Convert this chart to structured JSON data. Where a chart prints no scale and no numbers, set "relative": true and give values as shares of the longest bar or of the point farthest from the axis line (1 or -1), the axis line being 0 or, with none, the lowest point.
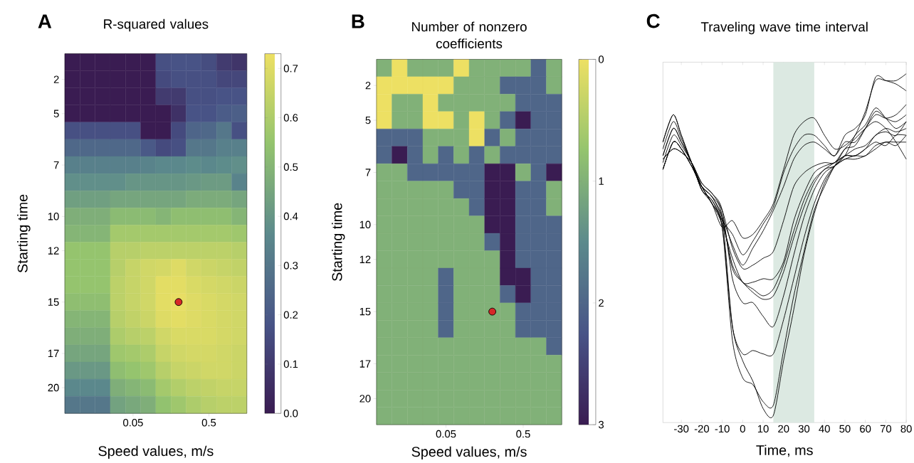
{
  "chart_data": [
    {
      "type": "heatmap",
      "title": "R-squared values",
      "xlabel": "Speed values, m/s",
      "ylabel": "Starting time",
      "annotations": [
        "A"
      ],
      "categories": [
        null,
        null,
        null,
        null,
        "0.05",
        null,
        null,
        null,
        null,
        "0.5",
        null,
        null
      ],
      "y_categories": [
        null,
        "2",
        null,
        "5",
        null,
        null,
        "7",
        null,
        null,
        "10",
        null,
        "12",
        null,
        null,
        "15",
        null,
        null,
        "17",
        null,
        "20",
        null
      ],
      "cells": [
        [
          0,
          0,
          0,
          0,
          0,
          0,
          0.17,
          0.18,
          0.18,
          0.16,
          0.1,
          0.08
        ],
        [
          0,
          0,
          0,
          0,
          0,
          0,
          0.15,
          0.17,
          0.17,
          0.17,
          0.14,
          0.14
        ],
        [
          0,
          0,
          0,
          0,
          0,
          0,
          0.1,
          0.1,
          0.17,
          0.17,
          0.18,
          0.18
        ],
        [
          0,
          0,
          0,
          0,
          0,
          0,
          0,
          0.07,
          0.18,
          0.18,
          0.21,
          0.22
        ],
        [
          0.17,
          0.17,
          0.17,
          0.17,
          0.17,
          0,
          0,
          0.15,
          0.24,
          0.25,
          0.3,
          0.17
        ],
        [
          0.25,
          0.25,
          0.25,
          0.25,
          0.25,
          0.2,
          0.15,
          0.17,
          0.3,
          0.3,
          0.33,
          0.33
        ],
        [
          0.33,
          0.33,
          0.33,
          0.33,
          0.33,
          0.34,
          0.36,
          0.36,
          0.37,
          0.36,
          0.37,
          0.38
        ],
        [
          0.38,
          0.38,
          0.38,
          0.38,
          0.4,
          0.4,
          0.4,
          0.4,
          0.41,
          0.42,
          0.42,
          0.34
        ],
        [
          0.43,
          0.43,
          0.43,
          0.45,
          0.45,
          0.45,
          0.45,
          0.45,
          0.47,
          0.47,
          0.47,
          0.45
        ],
        [
          0.48,
          0.48,
          0.48,
          0.52,
          0.52,
          0.52,
          0.5,
          0.53,
          0.53,
          0.53,
          0.53,
          0.5
        ],
        [
          0.5,
          0.5,
          0.5,
          0.58,
          0.58,
          0.58,
          0.58,
          0.58,
          0.58,
          0.58,
          0.58,
          0.57
        ],
        [
          0.55,
          0.55,
          0.55,
          0.62,
          0.62,
          0.63,
          0.63,
          0.63,
          0.63,
          0.63,
          0.63,
          0.62
        ],
        [
          0.55,
          0.55,
          0.55,
          0.62,
          0.65,
          0.67,
          0.68,
          0.7,
          0.67,
          0.66,
          0.65,
          0.64
        ],
        [
          0.55,
          0.55,
          0.55,
          0.63,
          0.65,
          0.67,
          0.71,
          0.71,
          0.69,
          0.68,
          0.67,
          0.66
        ],
        [
          0.53,
          0.53,
          0.53,
          0.63,
          0.65,
          0.67,
          0.71,
          0.72,
          0.7,
          0.69,
          0.68,
          0.67
        ],
        [
          0.5,
          0.5,
          0.5,
          0.62,
          0.64,
          0.66,
          0.7,
          0.71,
          0.7,
          0.69,
          0.68,
          0.67
        ],
        [
          0.48,
          0.48,
          0.48,
          0.6,
          0.62,
          0.63,
          0.67,
          0.69,
          0.69,
          0.69,
          0.68,
          0.67
        ],
        [
          0.45,
          0.45,
          0.45,
          0.57,
          0.58,
          0.6,
          0.65,
          0.67,
          0.68,
          0.68,
          0.67,
          0.66
        ],
        [
          0.41,
          0.41,
          0.41,
          0.53,
          0.55,
          0.57,
          0.62,
          0.65,
          0.66,
          0.67,
          0.67,
          0.66
        ],
        [
          0.36,
          0.36,
          0.36,
          0.48,
          0.5,
          0.52,
          0.58,
          0.61,
          0.63,
          0.64,
          0.65,
          0.65
        ],
        [
          0.3,
          0.3,
          0.3,
          0.44,
          0.46,
          0.48,
          0.54,
          0.57,
          0.6,
          0.62,
          0.63,
          0.63
        ]
      ],
      "clim": [
        0,
        0.73
      ],
      "cticks": [
        {
          "value": 0,
          "label": "0.0"
        },
        {
          "value": 0.1,
          "label": "0.1"
        },
        {
          "value": 0.2,
          "label": "0.2"
        },
        {
          "value": 0.3,
          "label": "0.3"
        },
        {
          "value": 0.4,
          "label": "0.4"
        },
        {
          "value": 0.5,
          "label": "0.5"
        },
        {
          "value": 0.6,
          "label": "0.6"
        },
        {
          "value": 0.7,
          "label": "0.7"
        }
      ],
      "series": [
        {
          "type": "scatter",
          "color": "#d62728",
          "values": [
            null,
            null,
            null,
            null,
            null,
            null,
            null,
            14,
            null,
            null,
            null,
            null
          ]
        }
      ]
    },
    {
      "type": "heatmap",
      "title": "Number of nonzero coefficients",
      "xlabel": "Speed values, m/s",
      "ylabel": "Starting time",
      "annotations": [
        "B"
      ],
      "categories": [
        null,
        null,
        null,
        null,
        "0.05",
        null,
        null,
        null,
        null,
        "0.5",
        null,
        null
      ],
      "y_categories": [
        null,
        "2",
        null,
        "5",
        null,
        null,
        "7",
        null,
        null,
        "10",
        null,
        "12",
        null,
        null,
        "15",
        null,
        null,
        "17",
        null,
        "20",
        null
      ],
      "cells": [
        [
          1,
          0,
          1,
          1,
          1,
          0,
          1,
          1,
          1,
          1,
          2,
          1
        ],
        [
          0,
          0,
          0,
          0,
          0,
          1,
          1,
          1,
          2,
          2,
          2,
          1
        ],
        [
          0,
          1,
          1,
          0,
          1,
          1,
          1,
          1,
          1,
          2,
          2,
          2
        ],
        [
          0,
          1,
          1,
          0,
          0,
          1,
          0,
          1,
          2,
          3,
          2,
          2
        ],
        [
          2,
          2,
          2,
          1,
          1,
          1,
          0,
          2,
          1,
          2,
          2,
          2
        ],
        [
          2,
          3,
          2,
          1,
          2,
          1,
          2,
          1,
          2,
          2,
          2,
          2
        ],
        [
          1,
          1,
          2,
          2,
          2,
          2,
          2,
          3,
          3,
          1,
          2,
          3
        ],
        [
          1,
          1,
          1,
          1,
          1,
          2,
          2,
          3,
          3,
          2,
          2,
          1
        ],
        [
          1,
          1,
          1,
          1,
          1,
          1,
          2,
          3,
          3,
          2,
          2,
          1
        ],
        [
          1,
          1,
          1,
          1,
          1,
          1,
          1,
          3,
          3,
          2,
          2,
          2
        ],
        [
          1,
          1,
          1,
          1,
          1,
          1,
          1,
          2,
          3,
          2,
          2,
          2
        ],
        [
          1,
          1,
          1,
          1,
          1,
          1,
          1,
          1,
          3,
          2,
          2,
          2
        ],
        [
          1,
          1,
          1,
          1,
          2,
          1,
          1,
          1,
          3,
          3,
          2,
          2
        ],
        [
          1,
          1,
          1,
          1,
          2,
          1,
          1,
          1,
          2,
          3,
          2,
          2
        ],
        [
          1,
          1,
          1,
          1,
          2,
          1,
          1,
          1,
          1,
          2,
          2,
          2
        ],
        [
          1,
          1,
          1,
          1,
          2,
          1,
          1,
          1,
          1,
          2,
          2,
          2
        ],
        [
          1,
          1,
          1,
          1,
          1,
          1,
          1,
          1,
          1,
          1,
          1,
          2
        ],
        [
          1,
          1,
          1,
          1,
          1,
          1,
          1,
          1,
          1,
          1,
          1,
          1
        ],
        [
          1,
          1,
          1,
          1,
          1,
          1,
          1,
          1,
          1,
          1,
          1,
          1
        ],
        [
          1,
          1,
          1,
          1,
          1,
          1,
          1,
          1,
          1,
          1,
          1,
          1
        ],
        [
          1,
          1,
          1,
          1,
          1,
          1,
          1,
          1,
          1,
          1,
          1,
          1
        ]
      ],
      "clim": [
        3,
        0
      ],
      "cticks": [
        0,
        1,
        2,
        3
      ],
      "series": [
        {
          "type": "scatter",
          "color": "#d62728",
          "values": [
            null,
            null,
            null,
            null,
            null,
            null,
            null,
            14,
            null,
            null,
            null,
            null
          ]
        }
      ]
    },
    {
      "type": "line",
      "title": "Traveling wave time interval",
      "xlabel": "Time, ms",
      "annotations": [
        "C"
      ],
      "relative": true,
      "xlim": [
        -39,
        80
      ],
      "xticks": [
        -30,
        -20,
        -10,
        0,
        10,
        20,
        30,
        40,
        50,
        60,
        70,
        80
      ],
      "bands": [
        {
          "axis": "x",
          "from": 15,
          "to": 35,
          "color": "#dce9e2"
        }
      ],
      "x": [
        -39,
        -34,
        -30,
        -25,
        -20,
        -15,
        -10,
        -5,
        0,
        5,
        10,
        15,
        20,
        25,
        30,
        35,
        40,
        45,
        50,
        55,
        60,
        65,
        70,
        75,
        80
      ],
      "series": [
        {
          "color": "#000000",
          "values": [
            0.8,
            0.88,
            0.82,
            0.74,
            0.67,
            0.62,
            0.55,
            0.57,
            0.52,
            0.53,
            0.57,
            0.62,
            0.72,
            0.82,
            0.86,
            0.87,
            0.82,
            0.78,
            0.79,
            0.82,
            0.89,
            0.98,
            0.98,
            0.98,
            1.0
          ]
        },
        {
          "color": "#000000",
          "values": [
            0.76,
            0.84,
            0.8,
            0.74,
            0.66,
            0.63,
            0.57,
            0.53,
            0.47,
            0.51,
            0.56,
            0.61,
            0.71,
            0.78,
            0.82,
            0.82,
            0.79,
            0.76,
            0.82,
            0.84,
            0.88,
            0.99,
            0.98,
            0.97,
            0.95
          ]
        },
        {
          "color": "#000000",
          "values": [
            0.72,
            0.8,
            0.78,
            0.73,
            0.67,
            0.64,
            0.58,
            0.5,
            0.44,
            0.49,
            0.54,
            0.6,
            0.67,
            0.75,
            0.79,
            0.8,
            0.78,
            0.76,
            0.8,
            0.8,
            0.84,
            0.88,
            0.87,
            0.88,
            0.91
          ]
        },
        {
          "color": "#000000",
          "values": [
            0.75,
            0.78,
            0.77,
            0.74,
            0.68,
            0.65,
            0.6,
            0.49,
            0.43,
            0.44,
            0.46,
            0.48,
            0.57,
            0.67,
            0.71,
            0.73,
            0.74,
            0.74,
            0.78,
            0.79,
            0.84,
            0.89,
            0.87,
            0.86,
            0.88
          ]
        },
        {
          "color": "#000000",
          "values": [
            0.78,
            0.86,
            0.81,
            0.74,
            0.67,
            0.62,
            0.56,
            0.46,
            0.39,
            0.39,
            0.4,
            0.4,
            0.45,
            0.57,
            0.65,
            0.71,
            0.73,
            0.74,
            0.76,
            0.78,
            0.79,
            0.82,
            0.84,
            0.83,
            0.84
          ]
        },
        {
          "color": "#000000",
          "values": [
            0.76,
            0.84,
            0.8,
            0.74,
            0.66,
            0.63,
            0.57,
            0.44,
            0.39,
            0.37,
            0.35,
            0.37,
            0.44,
            0.54,
            0.63,
            0.69,
            0.72,
            0.74,
            0.76,
            0.76,
            0.78,
            0.82,
            0.83,
            0.82,
            0.86
          ]
        },
        {
          "color": "#000000",
          "values": [
            0.72,
            0.8,
            0.78,
            0.73,
            0.67,
            0.64,
            0.58,
            0.43,
            0.39,
            0.36,
            0.34,
            0.35,
            0.42,
            0.52,
            0.61,
            0.68,
            0.72,
            0.73,
            0.76,
            0.76,
            0.78,
            0.8,
            0.79,
            0.82,
            0.82
          ]
        },
        {
          "color": "#000000",
          "values": [
            0.75,
            0.78,
            0.77,
            0.74,
            0.68,
            0.65,
            0.6,
            0.4,
            0.33,
            0.33,
            0.29,
            0.26,
            0.35,
            0.47,
            0.58,
            0.66,
            0.71,
            0.73,
            0.75,
            0.76,
            0.76,
            0.79,
            0.8,
            0.8,
            0.8
          ]
        },
        {
          "color": "#000000",
          "values": [
            0.74,
            0.82,
            0.79,
            0.74,
            0.66,
            0.62,
            0.55,
            0.26,
            0.18,
            0.19,
            0.18,
            0.18,
            0.28,
            0.4,
            0.52,
            0.62,
            0.69,
            0.73,
            0.75,
            0.75,
            0.76,
            0.78,
            0.8,
            0.79,
            0.82
          ]
        },
        {
          "color": "#000000",
          "values": [
            0.8,
            0.88,
            0.82,
            0.74,
            0.67,
            0.62,
            0.55,
            0.22,
            0.11,
            0.09,
            0.04,
            0.03,
            0.19,
            0.35,
            0.48,
            0.6,
            0.67,
            0.73,
            0.76,
            0.82,
            0.85,
            0.9,
            0.87,
            0.84,
            0.86
          ]
        },
        {
          "color": "#000000",
          "values": [
            0.72,
            0.8,
            0.78,
            0.73,
            0.67,
            0.64,
            0.58,
            0.26,
            0.16,
            0.1,
            0.02,
            0.0,
            0.16,
            0.31,
            0.47,
            0.59,
            0.68,
            0.73,
            0.78,
            0.81,
            0.84,
            0.86,
            0.84,
            0.8,
            0.75
          ]
        }
      ]
    }
  ]
}
